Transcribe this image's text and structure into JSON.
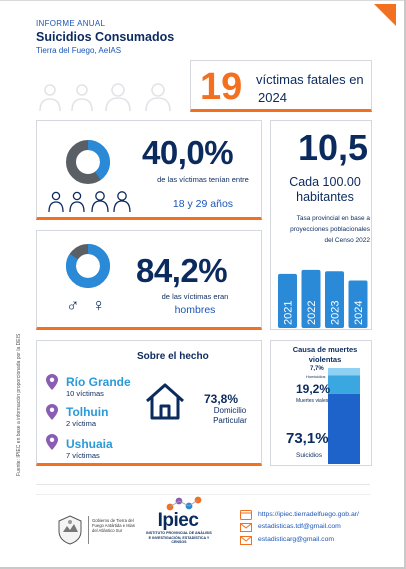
{
  "header": {
    "type": "INFORME ANUAL",
    "title": "Suicidios Consumados",
    "subtitle": "Tierra del Fuego, AeIAS"
  },
  "victims": {
    "number": "19",
    "text": "víctimas fatales en",
    "year": "2024"
  },
  "age_card": {
    "percent": "40,0%",
    "text": "de las víctimas tenían entre",
    "range": "18 y 29 años",
    "share": 0.4
  },
  "rate_card": {
    "rate": "10,5",
    "per": "Cada 100.00 habitantes",
    "note": "Tasa provincial en base a proyecciones poblacionales del Censo 2022",
    "years": [
      "2021",
      "2022",
      "2023",
      "2024"
    ],
    "bar_levels": [
      0.82,
      0.88,
      0.86,
      0.72
    ],
    "color": "#2a8ad8"
  },
  "gender_card": {
    "percent": "84,2%",
    "text": "de las víctimas eran",
    "word": "hombres",
    "share": 0.842,
    "male_symbol": "♂",
    "female_symbol": "♀"
  },
  "sobre": {
    "title": "Sobre el hecho",
    "locations": [
      {
        "name": "Río Grande",
        "count": "10 víctimas"
      },
      {
        "name": "Tolhuin",
        "count": "2 víctima"
      },
      {
        "name": "Ushuaia",
        "count": "7 víctimas"
      }
    ],
    "home_percent": "73,8%",
    "home_label": "Domicilio Particular"
  },
  "causa": {
    "title": "Causa de muertes violentas",
    "items": [
      {
        "value": "7,7%",
        "label": "Homicidios",
        "share": 0.077,
        "color": "#8fd1f2"
      },
      {
        "value": "19,2%",
        "label": "Muertes viales",
        "share": 0.192,
        "color": "#3aa7e0"
      },
      {
        "value": "73,1%",
        "label": "Suicidios",
        "share": 0.731,
        "color": "#1d63c9"
      }
    ]
  },
  "source_note": "Fuente: IPIEC en base a información proporcionada por la DEIS",
  "footer": {
    "gov": "Gobierno de Tierra del Fuego Antártida e Islas del Atlántico Sur",
    "org": "Ipiec",
    "org_full": "INSTITUTO PROVINCIAL DE ANÁLISIS E INVESTIGACIÓN, ESTADÍSTICA Y CENSOS",
    "web": "https://ipiec.tierradelfuego.gob.ar/",
    "email1": "estadisticas.tdf@gmail.com",
    "email2": "estadisticarg@gmail.com"
  },
  "colors": {
    "accent": "#f37021",
    "navy": "#0b2a5e",
    "blue": "#2a8ad8",
    "ring_gray": "#5a5f66",
    "pin": "#8a5cb3"
  }
}
